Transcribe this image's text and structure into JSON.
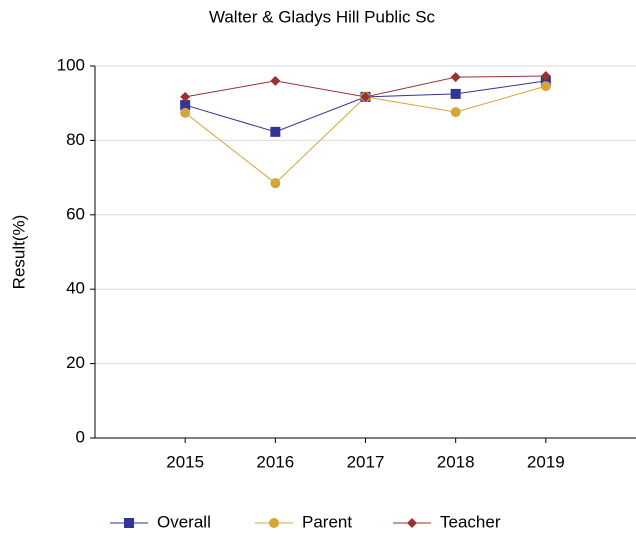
{
  "chart_data": {
    "type": "line",
    "title": "Walter & Gladys Hill Public Sc",
    "y_label": "Result(%)",
    "categories": [
      "2015",
      "2016",
      "2017",
      "2018",
      "2019"
    ],
    "series": [
      {
        "name": "Overall",
        "color": "#333399",
        "marker": "square",
        "values": [
          89.5,
          82.3,
          91.7,
          92.5,
          96.0
        ]
      },
      {
        "name": "Parent",
        "color": "#d4a537",
        "marker": "circle",
        "values": [
          87.4,
          68.5,
          91.7,
          87.6,
          94.6
        ]
      },
      {
        "name": "Teacher",
        "color": "#993333",
        "marker": "diamond",
        "values": [
          91.7,
          96.0,
          91.7,
          97.0,
          97.3
        ]
      }
    ],
    "ylim": [
      0,
      100
    ],
    "yticks": [
      0,
      20,
      40,
      60,
      80,
      100
    ],
    "grid": true,
    "legend": "bottom"
  }
}
